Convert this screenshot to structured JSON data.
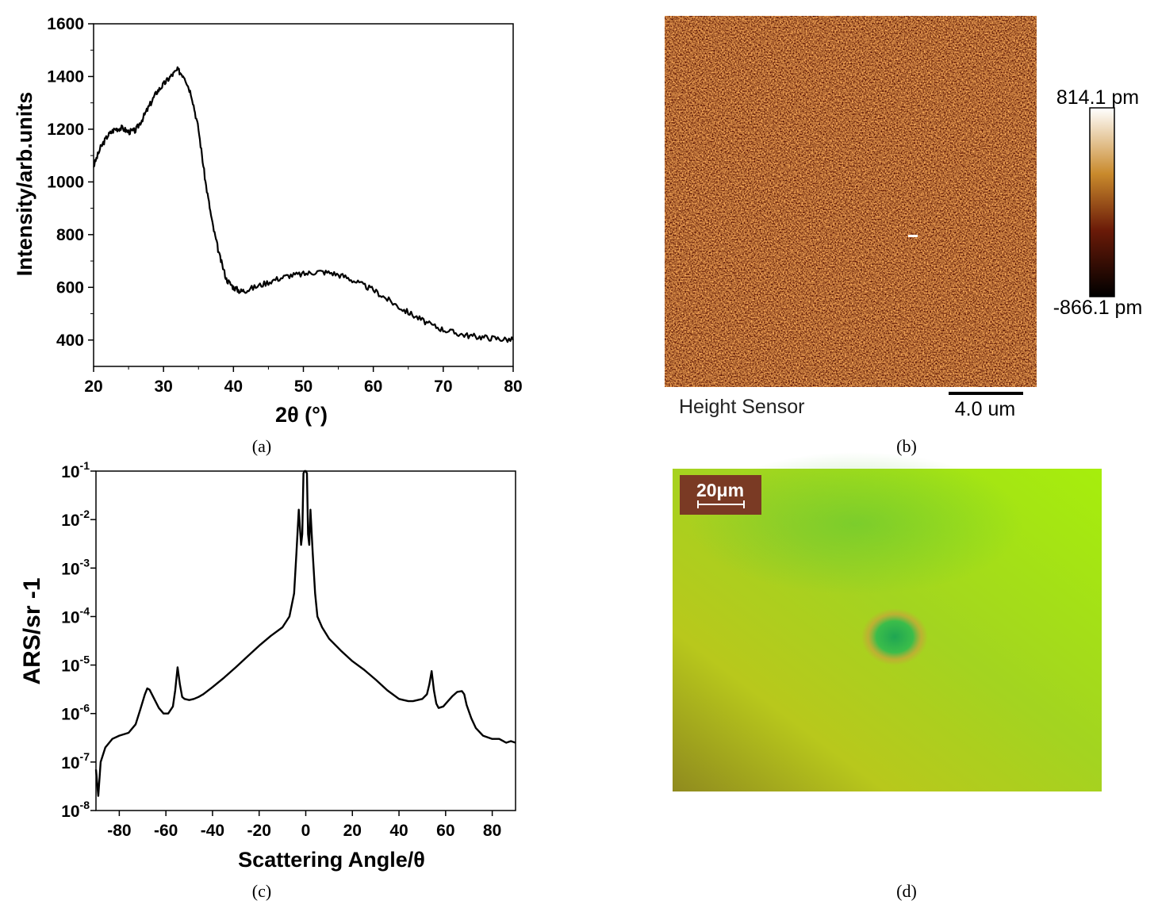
{
  "panels": {
    "a": {
      "label": "(a)",
      "chart_data": {
        "type": "line",
        "xlabel": "2θ (°)",
        "ylabel": "Intensity/arb.units",
        "xlim": [
          20,
          80
        ],
        "ylim": [
          300,
          1600
        ],
        "xticks": [
          20,
          30,
          40,
          50,
          60,
          70,
          80
        ],
        "yticks": [
          400,
          600,
          800,
          1000,
          1200,
          1400,
          1600
        ],
        "grid": false,
        "series": [
          {
            "x": [
              20,
              21,
              22,
              23,
              24,
              25,
              26,
              27,
              28,
              29,
              30,
              31,
              32,
              33,
              34,
              35,
              36,
              37,
              38,
              39,
              40,
              41,
              42,
              44,
              46,
              48,
              50,
              52,
              54,
              56,
              58,
              60,
              62,
              64,
              66,
              68,
              70,
              72,
              74,
              76,
              78,
              80
            ],
            "y": [
              1060,
              1130,
              1175,
              1200,
              1205,
              1190,
              1195,
              1240,
              1290,
              1340,
              1370,
              1400,
              1425,
              1400,
              1330,
              1200,
              1000,
              840,
              720,
              630,
              600,
              585,
              590,
              610,
              630,
              645,
              650,
              660,
              655,
              640,
              615,
              590,
              555,
              520,
              490,
              460,
              440,
              425,
              415,
              410,
              405,
              400
            ]
          }
        ]
      }
    },
    "b": {
      "label": "(b)",
      "caption": "Height Sensor",
      "scalebar_label": "4.0 um",
      "colorbar_max": "814.1 pm",
      "colorbar_min": "-866.1 pm"
    },
    "c": {
      "label": "(c)",
      "chart_data": {
        "type": "line",
        "xlabel": "Scattering Angle/θ",
        "ylabel": "ARS/sr -1",
        "xlim": [
          -90,
          90
        ],
        "ylim": [
          1e-08,
          0.1
        ],
        "yscale": "log",
        "xticks": [
          -80,
          -60,
          -40,
          -20,
          0,
          20,
          40,
          60,
          80
        ],
        "yticks": [
          "10-8",
          "10-7",
          "10-6",
          "10-5",
          "10-4",
          "10-3",
          "10-2",
          "10-1"
        ],
        "grid": false,
        "series": [
          {
            "x": [
              -90,
              -89,
              -88,
              -86,
              -83,
              -80,
              -76,
              -73,
              -71,
              -69,
              -68,
              -67,
              -65,
              -63,
              -61,
              -59,
              -57,
              -56,
              -55,
              -54,
              -53,
              -52,
              -50,
              -48,
              -46,
              -44,
              -40,
              -35,
              -30,
              -25,
              -20,
              -15,
              -10,
              -7,
              -5,
              -4,
              -3,
              -2,
              -1.5,
              -1,
              -0.5,
              0,
              0.5,
              1,
              1.5,
              2,
              3,
              4,
              5,
              7,
              10,
              15,
              20,
              25,
              30,
              35,
              40,
              44,
              46,
              48,
              50,
              52,
              53,
              54,
              55,
              56,
              57,
              59,
              61,
              63,
              65,
              67,
              68,
              69,
              71,
              73,
              76,
              80,
              83,
              86,
              88,
              90
            ],
            "y": [
              7e-08,
              2e-08,
              1e-07,
              2e-07,
              3e-07,
              3.5e-07,
              4e-07,
              6e-07,
              1.2e-06,
              2.5e-06,
              3.3e-06,
              3.1e-06,
              2e-06,
              1.3e-06,
              1e-06,
              1e-06,
              1.4e-06,
              3e-06,
              9e-06,
              4e-06,
              2.2e-06,
              2e-06,
              1.9e-06,
              2e-06,
              2.2e-06,
              2.5e-06,
              3.5e-06,
              5.5e-06,
              9e-06,
              1.5e-05,
              2.5e-05,
              4e-05,
              6e-05,
              0.0001,
              0.0003,
              0.002,
              0.016,
              0.003,
              0.005,
              0.09,
              0.1,
              0.1,
              0.09,
              0.005,
              0.003,
              0.016,
              0.002,
              0.0003,
              0.0001,
              6e-05,
              3.5e-05,
              2e-05,
              1.2e-05,
              8e-06,
              5e-06,
              3e-06,
              2e-06,
              1.8e-06,
              1.8e-06,
              1.9e-06,
              2e-06,
              2.5e-06,
              4e-06,
              7.5e-06,
              3e-06,
              1.6e-06,
              1.3e-06,
              1.4e-06,
              1.8e-06,
              2.3e-06,
              2.8e-06,
              2.9e-06,
              2.5e-06,
              1.5e-06,
              8e-07,
              5e-07,
              3.5e-07,
              3e-07,
              3e-07,
              2.5e-07,
              2.7e-07,
              2.5e-07
            ]
          }
        ]
      }
    },
    "d": {
      "label": "(d)",
      "scalebar_label": "20μm"
    }
  },
  "colors": {
    "line": "#000000",
    "afm_base": "#8a4a15",
    "scalebar_box": "#7a3a24",
    "micro_green": "#8fd61f"
  }
}
